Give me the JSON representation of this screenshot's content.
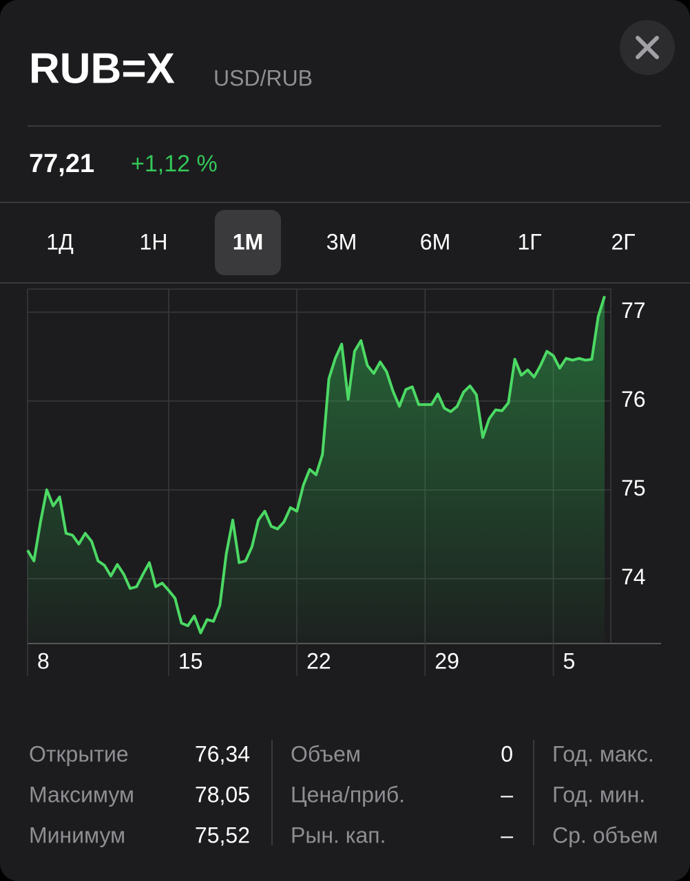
{
  "header": {
    "symbol": "RUB=X",
    "name": "USD/RUB"
  },
  "quote": {
    "price": "77,21",
    "change": "+1,12 %"
  },
  "ranges": {
    "items": [
      "1Д",
      "1Н",
      "1М",
      "3М",
      "6М",
      "1Г",
      "2Г"
    ],
    "selected": 2
  },
  "chart_data": {
    "type": "line",
    "categories": [
      "8",
      null,
      null,
      null,
      null,
      null,
      null,
      null,
      null,
      null,
      null,
      null,
      null,
      null,
      null,
      null,
      null,
      null,
      null,
      null,
      null,
      null,
      "15",
      null,
      null,
      null,
      null,
      null,
      null,
      null,
      null,
      null,
      null,
      null,
      null,
      null,
      null,
      null,
      null,
      null,
      null,
      null,
      "22",
      null,
      null,
      null,
      null,
      null,
      null,
      null,
      null,
      null,
      null,
      null,
      null,
      null,
      null,
      null,
      null,
      null,
      null,
      null,
      "29",
      null,
      null,
      null,
      null,
      null,
      null,
      null,
      null,
      null,
      null,
      null,
      null,
      null,
      null,
      null,
      null,
      null,
      null,
      null,
      "5",
      null,
      null,
      null,
      null,
      null,
      null,
      null,
      null
    ],
    "values": [
      74.32,
      74.2,
      74.63,
      75.0,
      74.82,
      74.92,
      74.51,
      74.49,
      74.39,
      74.51,
      74.42,
      74.2,
      74.15,
      74.03,
      74.16,
      74.05,
      73.89,
      73.91,
      74.05,
      74.18,
      73.91,
      73.95,
      73.87,
      73.78,
      73.5,
      73.47,
      73.58,
      73.39,
      73.54,
      73.52,
      73.7,
      74.28,
      74.66,
      74.18,
      74.2,
      74.36,
      74.66,
      74.76,
      74.59,
      74.56,
      74.64,
      74.8,
      74.76,
      75.05,
      75.23,
      75.17,
      75.4,
      76.25,
      76.48,
      76.64,
      76.02,
      76.56,
      76.68,
      76.4,
      76.31,
      76.44,
      76.33,
      76.11,
      75.94,
      76.13,
      76.16,
      75.96,
      75.96,
      75.96,
      76.08,
      75.92,
      75.88,
      75.94,
      76.1,
      76.17,
      76.07,
      75.59,
      75.8,
      75.9,
      75.89,
      75.98,
      76.47,
      76.29,
      76.35,
      76.27,
      76.4,
      76.56,
      76.51,
      76.37,
      76.48,
      76.46,
      76.48,
      76.46,
      76.47,
      76.95,
      77.18
    ],
    "color": "#4cd964",
    "ylim": [
      73.27,
      77.26
    ],
    "yticks": [
      74,
      75,
      76,
      77
    ],
    "grid": true
  },
  "stats": {
    "columns": [
      {
        "rows": [
          {
            "label": "Открытие",
            "value": "76,34"
          },
          {
            "label": "Максимум",
            "value": "78,05"
          },
          {
            "label": "Минимум",
            "value": "75,52"
          }
        ]
      },
      {
        "rows": [
          {
            "label": "Объем",
            "value": "0"
          },
          {
            "label": "Цена/приб.",
            "value": "–"
          },
          {
            "label": "Рын. кап.",
            "value": "–"
          }
        ]
      },
      {
        "rows": [
          {
            "label": "Год. макс."
          },
          {
            "label": "Год. мин."
          },
          {
            "label": "Ср. объем"
          }
        ]
      }
    ]
  }
}
